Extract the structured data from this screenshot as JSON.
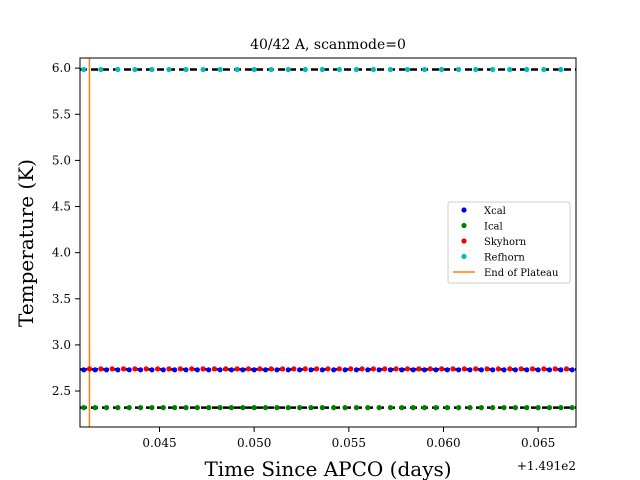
{
  "chart_data": {
    "type": "scatter",
    "title": "40/42 A, scanmode=0",
    "xlabel": "Time Since APCO (days)",
    "ylabel": "Temperature (K)",
    "x_offset_label": "+1.491e2",
    "xlim": [
      0.0408,
      0.067
    ],
    "ylim": [
      2.11,
      6.11
    ],
    "x_ticks": [
      0.045,
      0.05,
      0.055,
      0.06,
      0.065
    ],
    "x_tick_labels": [
      "0.045",
      "0.050",
      "0.055",
      "0.060",
      "0.065"
    ],
    "y_ticks": [
      2.5,
      3.0,
      3.5,
      4.0,
      4.5,
      5.0,
      5.5,
      6.0
    ],
    "y_tick_labels": [
      "2.5",
      "3.0",
      "3.5",
      "4.0",
      "4.5",
      "5.0",
      "5.5",
      "6.0"
    ],
    "series": [
      {
        "name": "Xcal",
        "color": "#0000ff",
        "x_start": 0.041,
        "x_step": 0.0006,
        "count": 44,
        "level": 2.73
      },
      {
        "name": "Ical",
        "color": "#008000",
        "x_start": 0.041,
        "x_step": 0.0006,
        "count": 44,
        "level": 2.32
      },
      {
        "name": "Skyhorn",
        "color": "#ff0000",
        "x_start": 0.0413,
        "x_step": 0.0006,
        "count": 44,
        "level": 2.74
      },
      {
        "name": "Refhorn",
        "color": "#00bfbf",
        "x_start": 0.041,
        "x_step": 0.0009,
        "count": 30,
        "level": 5.985
      }
    ],
    "fit_lines": [
      {
        "color": "#000000",
        "level": 2.735
      },
      {
        "color": "#000000",
        "level": 2.32
      },
      {
        "color": "#000000",
        "level": 5.985
      }
    ],
    "vline": {
      "name": "End of Plateau",
      "color": "#ff7f0e",
      "x": 0.0413
    },
    "legend_position": "center-right",
    "grid": false
  }
}
